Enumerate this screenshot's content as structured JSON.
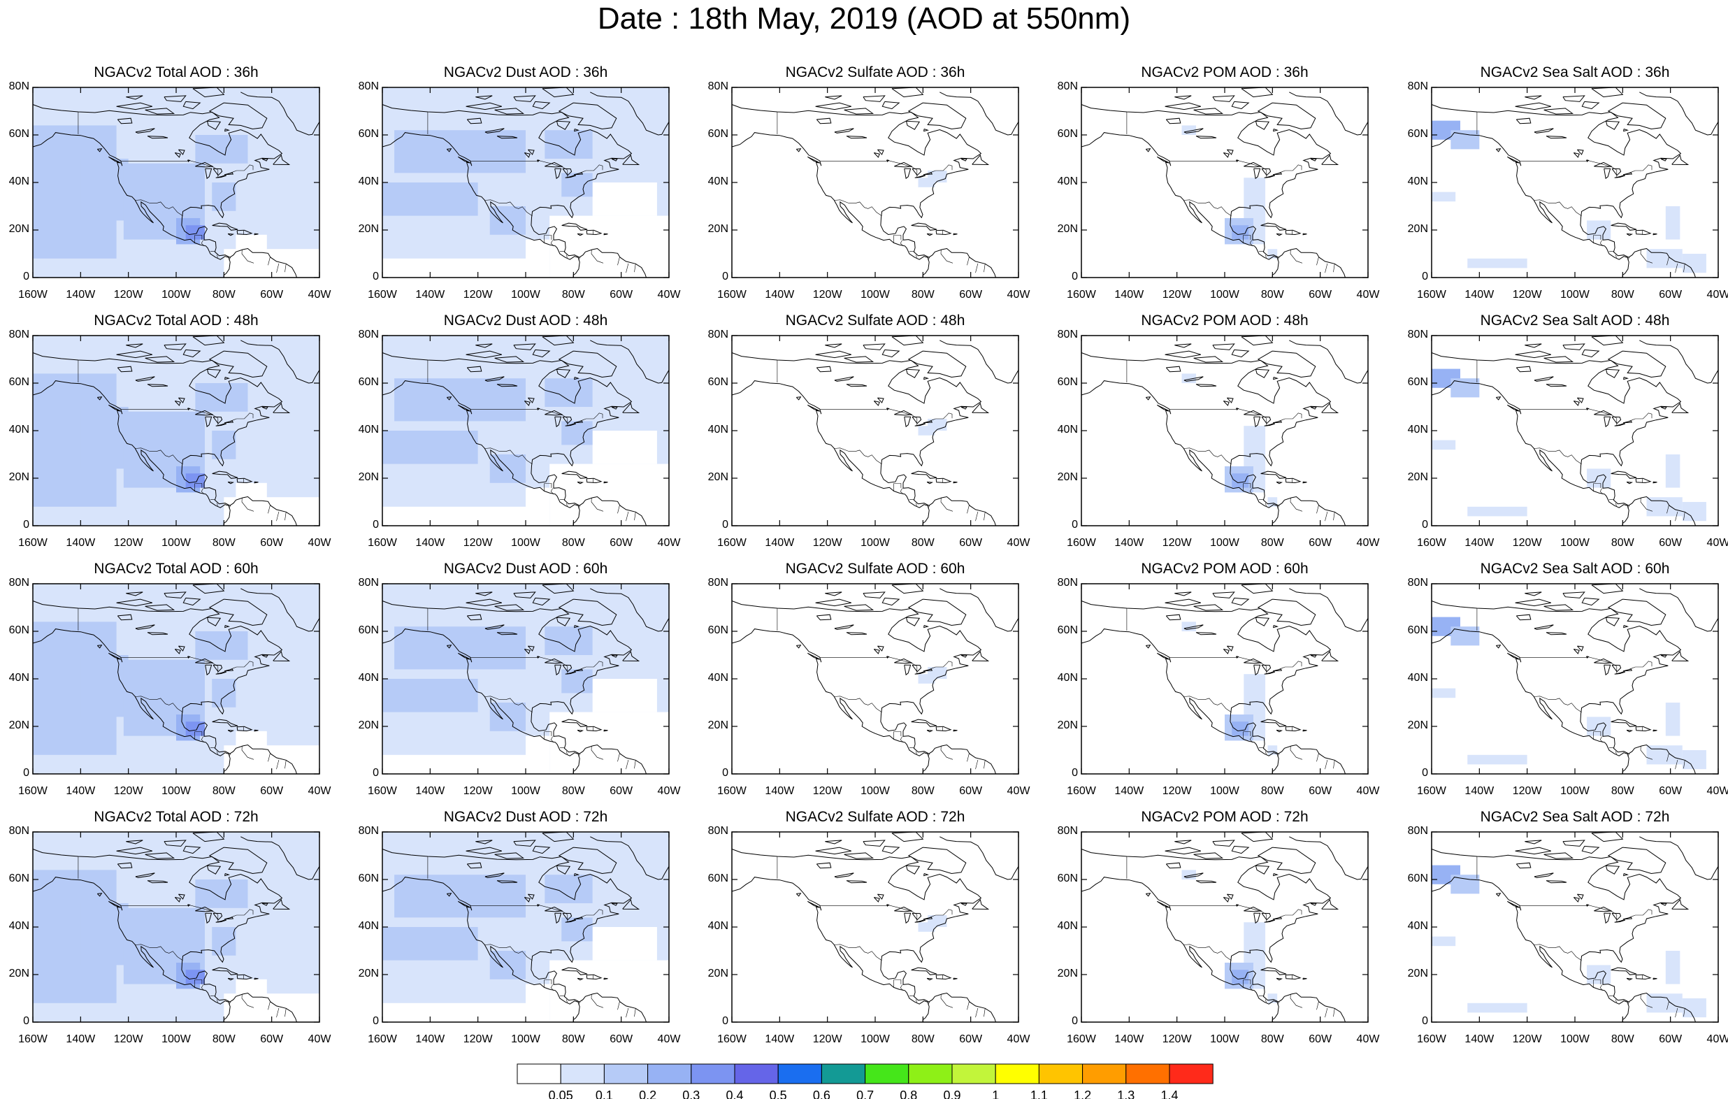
{
  "title": "Date : 18th May, 2019 (AOD at 550nm)",
  "panels": [
    {
      "title": "NGACv2 Total AOD : 36h",
      "type": "total"
    },
    {
      "title": "NGACv2 Dust AOD : 36h",
      "type": "dust"
    },
    {
      "title": "NGACv2 Sulfate AOD : 36h",
      "type": "sulfate"
    },
    {
      "title": "NGACv2 POM AOD : 36h",
      "type": "pom"
    },
    {
      "title": "NGACv2 Sea Salt AOD : 36h",
      "type": "seasalt"
    },
    {
      "title": "NGACv2 Total AOD : 48h",
      "type": "total"
    },
    {
      "title": "NGACv2 Dust AOD : 48h",
      "type": "dust"
    },
    {
      "title": "NGACv2 Sulfate AOD : 48h",
      "type": "sulfate"
    },
    {
      "title": "NGACv2 POM AOD : 48h",
      "type": "pom"
    },
    {
      "title": "NGACv2 Sea Salt AOD : 48h",
      "type": "seasalt"
    },
    {
      "title": "NGACv2 Total AOD : 60h",
      "type": "total"
    },
    {
      "title": "NGACv2 Dust AOD : 60h",
      "type": "dust"
    },
    {
      "title": "NGACv2 Sulfate AOD : 60h",
      "type": "sulfate"
    },
    {
      "title": "NGACv2 POM AOD : 60h",
      "type": "pom"
    },
    {
      "title": "NGACv2 Sea Salt AOD : 60h",
      "type": "seasalt"
    },
    {
      "title": "NGACv2 Total AOD : 72h",
      "type": "total"
    },
    {
      "title": "NGACv2 Dust AOD : 72h",
      "type": "dust"
    },
    {
      "title": "NGACv2 Sulfate AOD : 72h",
      "type": "sulfate"
    },
    {
      "title": "NGACv2 POM AOD : 72h",
      "type": "pom"
    },
    {
      "title": "NGACv2 Sea Salt  AOD : 72h",
      "type": "seasalt"
    }
  ],
  "lat_labels": [
    "80N",
    "60N",
    "40N",
    "20N",
    "0"
  ],
  "lon_labels": [
    "160W",
    "140W",
    "120W",
    "100W",
    "80W",
    "60W",
    "40W"
  ],
  "colorbar": {
    "colors": [
      "#ffffff",
      "#d8e4fb",
      "#b6cbf7",
      "#97b2f4",
      "#7c94f2",
      "#6565e8",
      "#1a6ef0",
      "#139a95",
      "#45e61a",
      "#8ef017",
      "#c2f53a",
      "#ffff00",
      "#ffc400",
      "#ff9d00",
      "#ff7000",
      "#ff2a1a"
    ],
    "labels": [
      "0.05",
      "0.1",
      "0.2",
      "0.3",
      "0.4",
      "0.5",
      "0.6",
      "0.7",
      "0.8",
      "0.9",
      "1",
      "1.1",
      "1.2",
      "1.3",
      "1.4"
    ]
  }
}
